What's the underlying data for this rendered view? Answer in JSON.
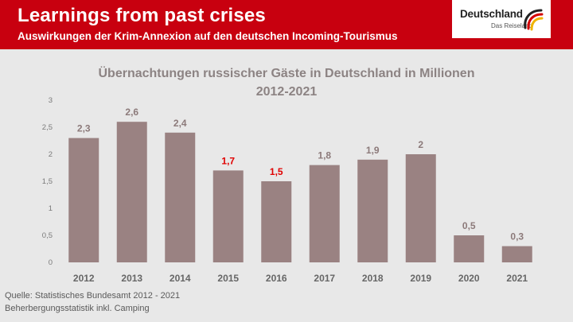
{
  "header": {
    "title": "Learnings from past crises",
    "subtitle": "Auswirkungen der Krim-Annexion auf den deutschen Incoming-Tourismus"
  },
  "logo": {
    "word": "Deutschland",
    "tagline": "Das Reiseland"
  },
  "colors": {
    "header_bg": "#c8000f",
    "bar": "#9a8282",
    "highlight_label": "#e00000",
    "label": "#8c7a7a"
  },
  "chart_data": {
    "type": "bar",
    "title": "Übernachtungen russischer Gäste in Deutschland in Millionen",
    "subtitle": "2012-2021",
    "categories": [
      "2012",
      "2013",
      "2014",
      "2015",
      "2016",
      "2017",
      "2018",
      "2019",
      "2020",
      "2021"
    ],
    "values": [
      2.3,
      2.6,
      2.4,
      1.7,
      1.5,
      1.8,
      1.9,
      2.0,
      0.5,
      0.3
    ],
    "value_labels": [
      "2,3",
      "2,6",
      "2,4",
      "1,7",
      "1,5",
      "1,8",
      "1,9",
      "2",
      "0,5",
      "0,3"
    ],
    "highlighted": [
      "2015",
      "2016"
    ],
    "y_ticks": [
      0,
      0.5,
      1,
      1.5,
      2,
      2.5,
      3
    ],
    "y_tick_labels": [
      "0",
      "0,5",
      "1",
      "1,5",
      "2",
      "2,5",
      "3"
    ],
    "ylim": [
      0,
      3
    ],
    "xlabel": "",
    "ylabel": "",
    "grid": false
  },
  "source": {
    "line1": "Quelle: Statistisches Bundesamt 2012 - 2021",
    "line2": "Beherbergungsstatistik inkl. Camping"
  }
}
